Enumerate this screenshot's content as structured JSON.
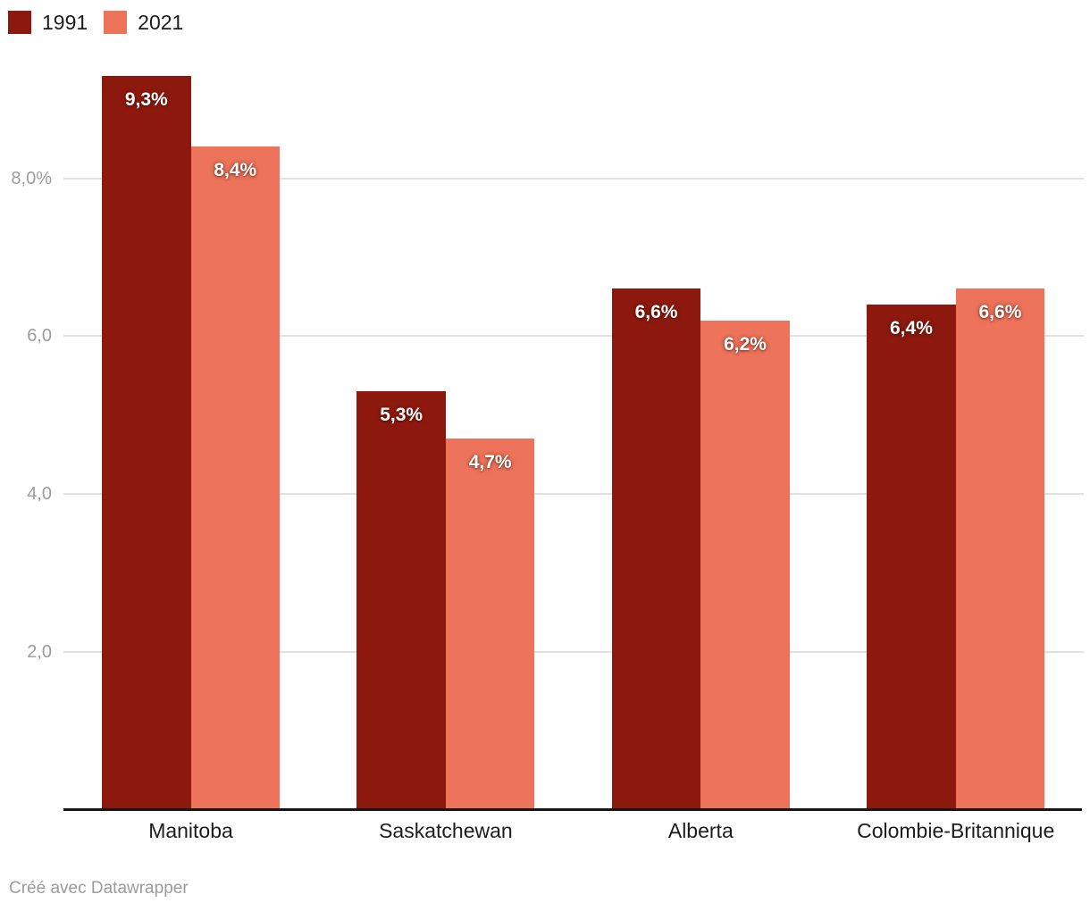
{
  "chart_data": {
    "type": "bar",
    "title": "",
    "categories": [
      "Manitoba",
      "Saskatchewan",
      "Alberta",
      "Colombie-Britannique"
    ],
    "series": [
      {
        "name": "1991",
        "color": "#8D190E",
        "values": [
          9.3,
          5.3,
          6.6,
          6.4
        ],
        "value_labels": [
          "9,3%",
          "5,3%",
          "6,6%",
          "6,4%"
        ]
      },
      {
        "name": "2021",
        "color": "#ED735A",
        "values": [
          8.4,
          4.7,
          6.2,
          6.6
        ],
        "value_labels": [
          "8,4%",
          "4,7%",
          "6,2%",
          "6,6%"
        ]
      }
    ],
    "xlabel": "",
    "ylabel": "",
    "y_axis": {
      "range": [
        0,
        9.45
      ],
      "grid": true,
      "ticks": [
        {
          "value": 2,
          "label": "2,0"
        },
        {
          "value": 4,
          "label": "4,0"
        },
        {
          "value": 6,
          "label": "6,0"
        },
        {
          "value": 8,
          "label": "8,0%"
        }
      ]
    },
    "legend_position": "top-left",
    "value_label_style": "white bold inside bar top, comma decimals"
  },
  "colors": {
    "bar_1991": "#8D190E",
    "bar_2021": "#ED735A",
    "gridline": "#e1e1e1",
    "axis_line": "#161616",
    "tick_text": "#9c9c9c",
    "category_text": "#1d1d1d",
    "credit_text": "#9b9b9b"
  },
  "footer": {
    "credit": "Créé avec Datawrapper"
  }
}
